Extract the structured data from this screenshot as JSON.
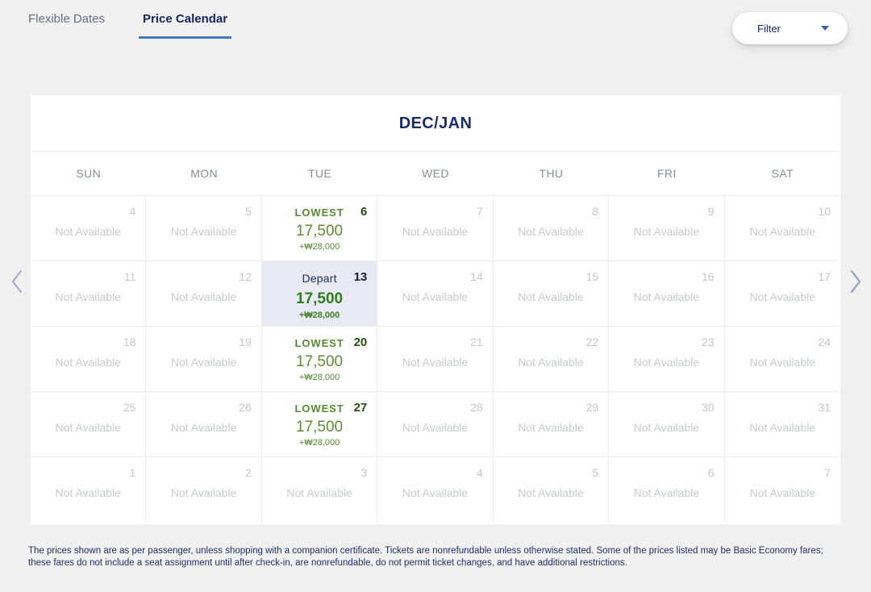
{
  "tabs": [
    {
      "label": "Flexible Dates",
      "active": false
    },
    {
      "label": "Price Calendar",
      "active": true
    }
  ],
  "filter": {
    "label": "Filter",
    "caret_icon": "caret-down",
    "caret_color": "#3b63ae"
  },
  "nav": {
    "prev_icon": "chevron-left",
    "next_icon": "chevron-right"
  },
  "calendar": {
    "month_label": "DEC/JAN",
    "day_headers": [
      "SUN",
      "MON",
      "TUE",
      "WED",
      "THU",
      "FRI",
      "SAT"
    ],
    "not_available_text": "Not Available",
    "colors": {
      "accent_blue": "#4577c8",
      "navy": "#1b2d6b",
      "green": "#578a33",
      "depart_bg": "#e7eaf3",
      "unavailable_gray": "#c7cacf"
    },
    "weeks": [
      [
        {
          "date": "4",
          "type": "unavailable"
        },
        {
          "date": "5",
          "type": "unavailable"
        },
        {
          "date": "6",
          "type": "lowest",
          "label": "LOWEST",
          "price": "17,500",
          "sub": "+₩28,000"
        },
        {
          "date": "7",
          "type": "unavailable"
        },
        {
          "date": "8",
          "type": "unavailable"
        },
        {
          "date": "9",
          "type": "unavailable"
        },
        {
          "date": "10",
          "type": "unavailable"
        }
      ],
      [
        {
          "date": "11",
          "type": "unavailable"
        },
        {
          "date": "12",
          "type": "unavailable"
        },
        {
          "date": "13",
          "type": "depart",
          "label": "Depart",
          "price": "17,500",
          "sub": "+₩28,000"
        },
        {
          "date": "14",
          "type": "unavailable"
        },
        {
          "date": "15",
          "type": "unavailable"
        },
        {
          "date": "16",
          "type": "unavailable"
        },
        {
          "date": "17",
          "type": "unavailable"
        }
      ],
      [
        {
          "date": "18",
          "type": "unavailable"
        },
        {
          "date": "19",
          "type": "unavailable"
        },
        {
          "date": "20",
          "type": "lowest",
          "label": "LOWEST",
          "price": "17,500",
          "sub": "+₩28,000"
        },
        {
          "date": "21",
          "type": "unavailable"
        },
        {
          "date": "22",
          "type": "unavailable"
        },
        {
          "date": "23",
          "type": "unavailable"
        },
        {
          "date": "24",
          "type": "unavailable"
        }
      ],
      [
        {
          "date": "25",
          "type": "unavailable"
        },
        {
          "date": "26",
          "type": "unavailable"
        },
        {
          "date": "27",
          "type": "lowest",
          "label": "LOWEST",
          "price": "17,500",
          "sub": "+₩28,000"
        },
        {
          "date": "28",
          "type": "unavailable"
        },
        {
          "date": "29",
          "type": "unavailable"
        },
        {
          "date": "30",
          "type": "unavailable"
        },
        {
          "date": "31",
          "type": "unavailable"
        }
      ],
      [
        {
          "date": "1",
          "type": "unavailable"
        },
        {
          "date": "2",
          "type": "unavailable"
        },
        {
          "date": "3",
          "type": "unavailable"
        },
        {
          "date": "4",
          "type": "unavailable"
        },
        {
          "date": "5",
          "type": "unavailable"
        },
        {
          "date": "6",
          "type": "unavailable"
        },
        {
          "date": "7",
          "type": "unavailable"
        }
      ]
    ]
  },
  "footer": {
    "disclaimer": "The prices shown are as per passenger, unless shopping with a companion certificate. Tickets are nonrefundable unless otherwise stated. Some of the prices listed may be Basic Economy fares; these fares do not include a seat assignment until after check-in, are nonrefundable, do not permit ticket changes, and have additional restrictions."
  }
}
